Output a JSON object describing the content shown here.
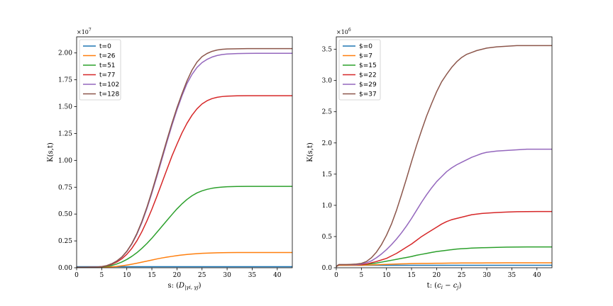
{
  "chart_data": [
    {
      "type": "line",
      "xlabel": "s: (D_{|γ_i, γ_j})",
      "xlabel_parts": {
        "prefix": "s: (",
        "D": "D",
        "sub": "|γi, γj",
        "suffix": ")"
      },
      "ylabel": "K(s,t)",
      "scale_base": "×10",
      "scale_exp": "7",
      "xlim": [
        0,
        43
      ],
      "ylim": [
        0,
        2.15
      ],
      "xticks": [
        "0",
        "5",
        "10",
        "15",
        "20",
        "25",
        "30",
        "35",
        "40"
      ],
      "yticks": [
        "0.00",
        "0.25",
        "0.50",
        "0.75",
        "1.00",
        "1.25",
        "1.50",
        "1.75",
        "2.00"
      ],
      "legend_position": "top-left",
      "grid": false,
      "x": [
        0,
        2,
        4,
        5,
        6,
        7,
        8,
        9,
        10,
        11,
        12,
        13,
        14,
        15,
        16,
        17,
        18,
        19,
        20,
        21,
        22,
        23,
        24,
        25,
        26,
        27,
        28,
        29,
        30,
        32,
        34,
        36,
        38,
        40,
        43
      ],
      "series": [
        {
          "name": "t=0",
          "color": "#1f77b4",
          "values": [
            0.01,
            0.01,
            0.01,
            0.01,
            0.01,
            0.01,
            0.01,
            0.01,
            0.01,
            0.01,
            0.01,
            0.01,
            0.01,
            0.01,
            0.01,
            0.01,
            0.01,
            0.01,
            0.01,
            0.01,
            0.01,
            0.01,
            0.01,
            0.01,
            0.01,
            0.01,
            0.01,
            0.01,
            0.01,
            0.01,
            0.01,
            0.01,
            0.01,
            0.01,
            0.01
          ]
        },
        {
          "name": "t=26",
          "color": "#ff7f0e",
          "values": [
            0.005,
            0.005,
            0.005,
            0.005,
            0.006,
            0.008,
            0.012,
            0.018,
            0.025,
            0.033,
            0.042,
            0.052,
            0.062,
            0.072,
            0.082,
            0.091,
            0.099,
            0.106,
            0.113,
            0.119,
            0.124,
            0.128,
            0.131,
            0.134,
            0.136,
            0.138,
            0.139,
            0.14,
            0.141,
            0.142,
            0.142,
            0.142,
            0.142,
            0.142,
            0.142
          ]
        },
        {
          "name": "t=51",
          "color": "#2ca02c",
          "values": [
            0.005,
            0.005,
            0.006,
            0.008,
            0.013,
            0.022,
            0.035,
            0.053,
            0.077,
            0.106,
            0.14,
            0.18,
            0.225,
            0.275,
            0.33,
            0.385,
            0.44,
            0.495,
            0.548,
            0.595,
            0.636,
            0.67,
            0.697,
            0.716,
            0.73,
            0.74,
            0.747,
            0.751,
            0.754,
            0.757,
            0.758,
            0.758,
            0.758,
            0.758,
            0.758
          ]
        },
        {
          "name": "t=77",
          "color": "#d62728",
          "values": [
            0.005,
            0.005,
            0.007,
            0.01,
            0.018,
            0.032,
            0.053,
            0.083,
            0.125,
            0.18,
            0.25,
            0.335,
            0.435,
            0.545,
            0.665,
            0.79,
            0.915,
            1.04,
            1.15,
            1.255,
            1.345,
            1.42,
            1.48,
            1.525,
            1.555,
            1.575,
            1.587,
            1.594,
            1.598,
            1.601,
            1.602,
            1.602,
            1.602,
            1.602,
            1.602
          ]
        },
        {
          "name": "t=102",
          "color": "#9467bd",
          "values": [
            0.005,
            0.005,
            0.007,
            0.011,
            0.02,
            0.037,
            0.062,
            0.098,
            0.15,
            0.22,
            0.31,
            0.42,
            0.55,
            0.695,
            0.85,
            1.01,
            1.17,
            1.325,
            1.47,
            1.6,
            1.715,
            1.8,
            1.865,
            1.91,
            1.94,
            1.962,
            1.976,
            1.985,
            1.99,
            1.994,
            1.996,
            1.997,
            1.997,
            1.997,
            1.997
          ]
        },
        {
          "name": "t=128",
          "color": "#8c564b",
          "values": [
            0.005,
            0.005,
            0.007,
            0.011,
            0.02,
            0.037,
            0.063,
            0.1,
            0.153,
            0.225,
            0.318,
            0.43,
            0.562,
            0.71,
            0.868,
            1.03,
            1.19,
            1.345,
            1.49,
            1.62,
            1.74,
            1.84,
            1.915,
            1.965,
            1.995,
            2.015,
            2.027,
            2.034,
            2.037,
            2.039,
            2.04,
            2.04,
            2.04,
            2.04,
            2.04
          ]
        }
      ]
    },
    {
      "type": "line",
      "xlabel": "t: (c_i − c_j)",
      "xlabel_parts": {
        "prefix": "t: (",
        "c1": "c",
        "sub1": "i",
        "mid": " − ",
        "c2": "c",
        "sub2": "j",
        "suffix": ")"
      },
      "ylabel": "K(s,t)",
      "scale_base": "×10",
      "scale_exp": "6",
      "xlim": [
        0,
        43
      ],
      "ylim": [
        0,
        3.7
      ],
      "xticks": [
        "0",
        "5",
        "10",
        "15",
        "20",
        "25",
        "30",
        "35",
        "40"
      ],
      "yticks": [
        "0.0",
        "0.5",
        "1.0",
        "1.5",
        "2.0",
        "2.5",
        "3.0",
        "3.5"
      ],
      "legend_position": "top-left",
      "grid": false,
      "x": [
        0,
        0.5,
        2,
        4,
        5,
        6,
        7,
        8,
        9,
        10,
        11,
        12,
        13,
        14,
        15,
        16,
        17,
        18,
        19,
        20,
        21,
        22,
        23,
        24,
        25,
        26,
        27,
        28,
        29,
        30,
        32,
        34,
        36,
        38,
        40,
        43
      ],
      "series": [
        {
          "name": "$=0",
          "color": "#1f77b4",
          "values": [
            0.02,
            0.04,
            0.04,
            0.04,
            0.04,
            0.04,
            0.04,
            0.04,
            0.04,
            0.04,
            0.04,
            0.04,
            0.04,
            0.04,
            0.04,
            0.04,
            0.04,
            0.04,
            0.04,
            0.04,
            0.04,
            0.04,
            0.04,
            0.04,
            0.04,
            0.04,
            0.04,
            0.04,
            0.04,
            0.04,
            0.04,
            0.04,
            0.04,
            0.04,
            0.04,
            0.04
          ]
        },
        {
          "name": "$=7",
          "color": "#ff7f0e",
          "values": [
            0.02,
            0.04,
            0.04,
            0.04,
            0.04,
            0.042,
            0.045,
            0.048,
            0.051,
            0.054,
            0.057,
            0.06,
            0.062,
            0.064,
            0.066,
            0.068,
            0.069,
            0.07,
            0.071,
            0.072,
            0.073,
            0.074,
            0.075,
            0.075,
            0.076,
            0.076,
            0.077,
            0.077,
            0.077,
            0.078,
            0.078,
            0.079,
            0.079,
            0.079,
            0.079,
            0.079
          ]
        },
        {
          "name": "$=15",
          "color": "#2ca02c",
          "values": [
            0.02,
            0.05,
            0.05,
            0.05,
            0.05,
            0.055,
            0.065,
            0.075,
            0.09,
            0.105,
            0.12,
            0.135,
            0.15,
            0.165,
            0.18,
            0.2,
            0.215,
            0.23,
            0.245,
            0.26,
            0.27,
            0.28,
            0.29,
            0.3,
            0.305,
            0.31,
            0.315,
            0.318,
            0.32,
            0.322,
            0.326,
            0.33,
            0.332,
            0.333,
            0.334,
            0.334
          ]
        },
        {
          "name": "$=22",
          "color": "#d62728",
          "values": [
            0.02,
            0.05,
            0.05,
            0.05,
            0.05,
            0.06,
            0.08,
            0.1,
            0.125,
            0.15,
            0.19,
            0.23,
            0.28,
            0.33,
            0.38,
            0.44,
            0.5,
            0.55,
            0.6,
            0.65,
            0.7,
            0.74,
            0.77,
            0.79,
            0.81,
            0.83,
            0.85,
            0.86,
            0.87,
            0.875,
            0.885,
            0.893,
            0.898,
            0.9,
            0.901,
            0.901
          ]
        },
        {
          "name": "$=29",
          "color": "#9467bd",
          "values": [
            0.02,
            0.05,
            0.05,
            0.05,
            0.06,
            0.08,
            0.11,
            0.16,
            0.22,
            0.29,
            0.37,
            0.46,
            0.56,
            0.67,
            0.79,
            0.92,
            1.05,
            1.17,
            1.28,
            1.38,
            1.46,
            1.54,
            1.6,
            1.65,
            1.69,
            1.73,
            1.77,
            1.8,
            1.83,
            1.85,
            1.87,
            1.88,
            1.89,
            1.9,
            1.9,
            1.9
          ]
        },
        {
          "name": "$=37",
          "color": "#8c564b",
          "values": [
            0.02,
            0.05,
            0.05,
            0.06,
            0.07,
            0.1,
            0.16,
            0.25,
            0.37,
            0.52,
            0.7,
            0.92,
            1.17,
            1.43,
            1.7,
            1.96,
            2.2,
            2.43,
            2.63,
            2.82,
            2.98,
            3.1,
            3.21,
            3.3,
            3.37,
            3.42,
            3.45,
            3.48,
            3.5,
            3.52,
            3.54,
            3.55,
            3.56,
            3.56,
            3.56,
            3.56
          ]
        }
      ]
    }
  ]
}
